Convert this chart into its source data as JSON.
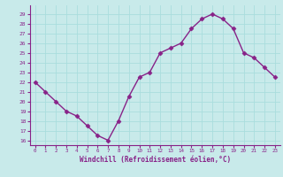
{
  "x": [
    0,
    1,
    2,
    3,
    4,
    5,
    6,
    7,
    8,
    9,
    10,
    11,
    12,
    13,
    14,
    15,
    16,
    17,
    18,
    19,
    20,
    21,
    22,
    23
  ],
  "y": [
    22,
    21,
    20,
    19,
    18.5,
    17.5,
    16.5,
    16,
    18,
    20.5,
    22.5,
    23,
    25,
    25.5,
    26,
    27.5,
    28.5,
    29,
    28.5,
    27.5,
    25,
    24.5,
    23.5,
    22.5
  ],
  "line_color": "#882288",
  "marker": "D",
  "marker_size": 2.5,
  "line_width": 1.0,
  "xlabel": "Windchill (Refroidissement éolien,°C)",
  "ylabel_ticks": [
    16,
    17,
    18,
    19,
    20,
    21,
    22,
    23,
    24,
    25,
    26,
    27,
    28,
    29
  ],
  "xtick_labels": [
    "0",
    "1",
    "2",
    "3",
    "4",
    "5",
    "6",
    "7",
    "8",
    "9",
    "10",
    "11",
    "12",
    "13",
    "14",
    "15",
    "16",
    "17",
    "18",
    "19",
    "20",
    "21",
    "22",
    "23"
  ],
  "ylim": [
    15.5,
    29.9
  ],
  "xlim": [
    -0.5,
    23.5
  ],
  "bg_color": "#c8eaea",
  "grid_color": "#aadddd",
  "tick_color": "#882288",
  "label_color": "#882288",
  "spine_color": "#882288"
}
